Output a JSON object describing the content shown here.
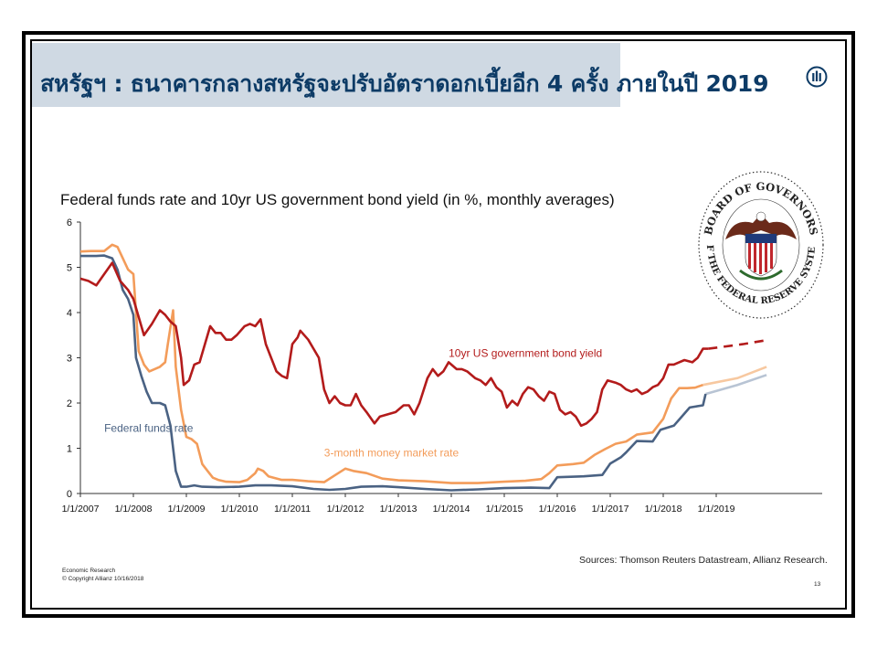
{
  "slide": {
    "title": "สหรัฐฯ : ธนาคารกลางสหรัฐจะปรับอัตราดอกเบี้ยอีก 4 ครั้ง ภายในปี  2019",
    "logo_icon": "allianz-logo-icon",
    "footer_line1": "Economic Research",
    "footer_line2": "© Copyright Allianz  10/16/2018",
    "sources": "Sources: Thomson Reuters Datastream, Allianz Research.",
    "page_number": "13",
    "seal_text_top": "BOARD OF GOVERNORS",
    "seal_text_bottom": "OF THE FEDERAL RESERVE SYSTEM",
    "colors": {
      "title": "#0d3b66",
      "title_band": "#cfd9e3"
    }
  },
  "chart_data": {
    "type": "line",
    "title": "Federal funds rate and 10yr US government bond yield (in %, monthly averages)",
    "xlabel": "",
    "ylabel": "",
    "ylim": [
      0,
      6
    ],
    "yticks": [
      "0",
      "1",
      "2",
      "3",
      "4",
      "5",
      "6"
    ],
    "xlim": [
      2007.0,
      2021.0
    ],
    "xticks": [
      {
        "label": "1/1/2007",
        "value": 2007
      },
      {
        "label": "1/1/2008",
        "value": 2008
      },
      {
        "label": "1/1/2009",
        "value": 2009
      },
      {
        "label": "1/1/2010",
        "value": 2010
      },
      {
        "label": "1/1/2011",
        "value": 2011
      },
      {
        "label": "1/1/2012",
        "value": 2012
      },
      {
        "label": "1/1/2013",
        "value": 2013
      },
      {
        "label": "1/1/2014",
        "value": 2014
      },
      {
        "label": "1/1/2015",
        "value": 2015
      },
      {
        "label": "1/1/2016",
        "value": 2016
      },
      {
        "label": "1/1/2017",
        "value": 2017
      },
      {
        "label": "1/1/2018",
        "value": 2018
      },
      {
        "label": "1/1/2019",
        "value": 2019
      }
    ],
    "grid": false,
    "legend": "none",
    "series": [
      {
        "name": "10yr US government bond yield",
        "color": "#b31b1b",
        "forecast_color": "#b31b1b",
        "points": [
          [
            2007.0,
            4.75
          ],
          [
            2007.15,
            4.7
          ],
          [
            2007.3,
            4.6
          ],
          [
            2007.45,
            4.85
          ],
          [
            2007.6,
            5.1
          ],
          [
            2007.75,
            4.7
          ],
          [
            2007.9,
            4.5
          ],
          [
            2008.0,
            4.3
          ],
          [
            2008.1,
            3.9
          ],
          [
            2008.2,
            3.5
          ],
          [
            2008.35,
            3.75
          ],
          [
            2008.5,
            4.05
          ],
          [
            2008.6,
            3.95
          ],
          [
            2008.7,
            3.8
          ],
          [
            2008.8,
            3.7
          ],
          [
            2008.9,
            3.0
          ],
          [
            2008.95,
            2.4
          ],
          [
            2009.05,
            2.5
          ],
          [
            2009.15,
            2.85
          ],
          [
            2009.25,
            2.9
          ],
          [
            2009.35,
            3.3
          ],
          [
            2009.45,
            3.7
          ],
          [
            2009.55,
            3.55
          ],
          [
            2009.65,
            3.55
          ],
          [
            2009.75,
            3.4
          ],
          [
            2009.85,
            3.4
          ],
          [
            2009.95,
            3.5
          ],
          [
            2010.1,
            3.7
          ],
          [
            2010.2,
            3.75
          ],
          [
            2010.3,
            3.7
          ],
          [
            2010.4,
            3.85
          ],
          [
            2010.5,
            3.3
          ],
          [
            2010.6,
            3.0
          ],
          [
            2010.7,
            2.7
          ],
          [
            2010.8,
            2.6
          ],
          [
            2010.9,
            2.55
          ],
          [
            2011.0,
            3.3
          ],
          [
            2011.1,
            3.45
          ],
          [
            2011.15,
            3.6
          ],
          [
            2011.3,
            3.4
          ],
          [
            2011.4,
            3.2
          ],
          [
            2011.5,
            3.0
          ],
          [
            2011.6,
            2.3
          ],
          [
            2011.7,
            2.0
          ],
          [
            2011.8,
            2.15
          ],
          [
            2011.9,
            2.0
          ],
          [
            2012.0,
            1.95
          ],
          [
            2012.1,
            1.95
          ],
          [
            2012.2,
            2.2
          ],
          [
            2012.3,
            1.95
          ],
          [
            2012.4,
            1.8
          ],
          [
            2012.55,
            1.55
          ],
          [
            2012.65,
            1.7
          ],
          [
            2012.8,
            1.75
          ],
          [
            2012.95,
            1.8
          ],
          [
            2013.1,
            1.95
          ],
          [
            2013.2,
            1.95
          ],
          [
            2013.3,
            1.75
          ],
          [
            2013.4,
            2.0
          ],
          [
            2013.55,
            2.55
          ],
          [
            2013.65,
            2.75
          ],
          [
            2013.75,
            2.6
          ],
          [
            2013.85,
            2.7
          ],
          [
            2013.95,
            2.9
          ],
          [
            2014.1,
            2.75
          ],
          [
            2014.2,
            2.75
          ],
          [
            2014.3,
            2.7
          ],
          [
            2014.45,
            2.55
          ],
          [
            2014.55,
            2.5
          ],
          [
            2014.65,
            2.4
          ],
          [
            2014.75,
            2.55
          ],
          [
            2014.85,
            2.35
          ],
          [
            2014.95,
            2.25
          ],
          [
            2015.05,
            1.9
          ],
          [
            2015.15,
            2.05
          ],
          [
            2015.25,
            1.95
          ],
          [
            2015.35,
            2.2
          ],
          [
            2015.45,
            2.35
          ],
          [
            2015.55,
            2.3
          ],
          [
            2015.65,
            2.15
          ],
          [
            2015.75,
            2.05
          ],
          [
            2015.85,
            2.25
          ],
          [
            2015.95,
            2.2
          ],
          [
            2016.05,
            1.85
          ],
          [
            2016.15,
            1.75
          ],
          [
            2016.25,
            1.8
          ],
          [
            2016.35,
            1.7
          ],
          [
            2016.45,
            1.5
          ],
          [
            2016.55,
            1.55
          ],
          [
            2016.65,
            1.65
          ],
          [
            2016.75,
            1.8
          ],
          [
            2016.85,
            2.3
          ],
          [
            2016.95,
            2.5
          ],
          [
            2017.1,
            2.45
          ],
          [
            2017.2,
            2.4
          ],
          [
            2017.3,
            2.3
          ],
          [
            2017.4,
            2.25
          ],
          [
            2017.5,
            2.3
          ],
          [
            2017.6,
            2.2
          ],
          [
            2017.7,
            2.25
          ],
          [
            2017.8,
            2.35
          ],
          [
            2017.9,
            2.4
          ],
          [
            2018.0,
            2.55
          ],
          [
            2018.1,
            2.85
          ],
          [
            2018.2,
            2.85
          ],
          [
            2018.3,
            2.9
          ],
          [
            2018.4,
            2.95
          ],
          [
            2018.55,
            2.9
          ],
          [
            2018.65,
            3.0
          ],
          [
            2018.75,
            3.2
          ],
          [
            2018.85,
            3.2
          ]
        ],
        "forecast": [
          [
            2018.85,
            3.2
          ],
          [
            2019.5,
            3.3
          ],
          [
            2019.9,
            3.38
          ]
        ]
      },
      {
        "name": "3-month money market rate",
        "color": "#f39c5a",
        "forecast_color": "#f7c8a0",
        "points": [
          [
            2007.0,
            5.35
          ],
          [
            2007.2,
            5.36
          ],
          [
            2007.45,
            5.36
          ],
          [
            2007.6,
            5.5
          ],
          [
            2007.7,
            5.45
          ],
          [
            2007.8,
            5.2
          ],
          [
            2007.9,
            4.95
          ],
          [
            2008.0,
            4.85
          ],
          [
            2008.1,
            3.15
          ],
          [
            2008.2,
            2.85
          ],
          [
            2008.3,
            2.7
          ],
          [
            2008.4,
            2.75
          ],
          [
            2008.5,
            2.8
          ],
          [
            2008.6,
            2.9
          ],
          [
            2008.65,
            3.3
          ],
          [
            2008.75,
            4.05
          ],
          [
            2008.8,
            2.8
          ],
          [
            2008.9,
            1.85
          ],
          [
            2009.0,
            1.25
          ],
          [
            2009.1,
            1.2
          ],
          [
            2009.2,
            1.1
          ],
          [
            2009.3,
            0.65
          ],
          [
            2009.4,
            0.5
          ],
          [
            2009.5,
            0.35
          ],
          [
            2009.6,
            0.3
          ],
          [
            2009.75,
            0.26
          ],
          [
            2010.0,
            0.25
          ],
          [
            2010.15,
            0.3
          ],
          [
            2010.3,
            0.45
          ],
          [
            2010.35,
            0.55
          ],
          [
            2010.45,
            0.5
          ],
          [
            2010.55,
            0.38
          ],
          [
            2010.8,
            0.3
          ],
          [
            2011.0,
            0.3
          ],
          [
            2011.3,
            0.27
          ],
          [
            2011.6,
            0.25
          ],
          [
            2011.8,
            0.4
          ],
          [
            2012.0,
            0.55
          ],
          [
            2012.15,
            0.5
          ],
          [
            2012.4,
            0.45
          ],
          [
            2012.7,
            0.33
          ],
          [
            2013.0,
            0.29
          ],
          [
            2013.5,
            0.27
          ],
          [
            2014.0,
            0.23
          ],
          [
            2014.5,
            0.23
          ],
          [
            2015.0,
            0.26
          ],
          [
            2015.4,
            0.28
          ],
          [
            2015.7,
            0.32
          ],
          [
            2015.85,
            0.45
          ],
          [
            2016.0,
            0.62
          ],
          [
            2016.3,
            0.65
          ],
          [
            2016.5,
            0.68
          ],
          [
            2016.7,
            0.85
          ],
          [
            2016.9,
            0.98
          ],
          [
            2017.1,
            1.1
          ],
          [
            2017.3,
            1.15
          ],
          [
            2017.5,
            1.3
          ],
          [
            2017.8,
            1.35
          ],
          [
            2018.0,
            1.65
          ],
          [
            2018.15,
            2.1
          ],
          [
            2018.3,
            2.33
          ],
          [
            2018.45,
            2.33
          ],
          [
            2018.6,
            2.34
          ],
          [
            2018.75,
            2.4
          ]
        ],
        "forecast": [
          [
            2018.75,
            2.4
          ],
          [
            2019.4,
            2.55
          ],
          [
            2019.95,
            2.8
          ]
        ]
      },
      {
        "name": "Federal funds rate",
        "color": "#4a6283",
        "forecast_color": "#b8c4d4",
        "points": [
          [
            2007.0,
            5.25
          ],
          [
            2007.3,
            5.25
          ],
          [
            2007.45,
            5.26
          ],
          [
            2007.6,
            5.2
          ],
          [
            2007.7,
            4.95
          ],
          [
            2007.8,
            4.5
          ],
          [
            2007.9,
            4.3
          ],
          [
            2008.0,
            3.95
          ],
          [
            2008.05,
            3.0
          ],
          [
            2008.15,
            2.6
          ],
          [
            2008.25,
            2.25
          ],
          [
            2008.35,
            2.0
          ],
          [
            2008.5,
            2.0
          ],
          [
            2008.6,
            1.95
          ],
          [
            2008.7,
            1.5
          ],
          [
            2008.8,
            0.5
          ],
          [
            2008.9,
            0.15
          ],
          [
            2009.0,
            0.15
          ],
          [
            2009.15,
            0.18
          ],
          [
            2009.3,
            0.15
          ],
          [
            2009.6,
            0.14
          ],
          [
            2010.0,
            0.15
          ],
          [
            2010.3,
            0.18
          ],
          [
            2010.6,
            0.18
          ],
          [
            2011.0,
            0.16
          ],
          [
            2011.4,
            0.1
          ],
          [
            2011.7,
            0.08
          ],
          [
            2012.0,
            0.1
          ],
          [
            2012.3,
            0.15
          ],
          [
            2012.7,
            0.16
          ],
          [
            2013.0,
            0.14
          ],
          [
            2013.5,
            0.1
          ],
          [
            2014.0,
            0.07
          ],
          [
            2014.5,
            0.09
          ],
          [
            2015.0,
            0.12
          ],
          [
            2015.5,
            0.13
          ],
          [
            2015.85,
            0.12
          ],
          [
            2016.0,
            0.36
          ],
          [
            2016.5,
            0.38
          ],
          [
            2016.85,
            0.41
          ],
          [
            2017.0,
            0.66
          ],
          [
            2017.2,
            0.8
          ],
          [
            2017.3,
            0.91
          ],
          [
            2017.5,
            1.16
          ],
          [
            2017.8,
            1.15
          ],
          [
            2017.95,
            1.41
          ],
          [
            2018.2,
            1.5
          ],
          [
            2018.35,
            1.7
          ],
          [
            2018.5,
            1.9
          ],
          [
            2018.75,
            1.95
          ],
          [
            2018.8,
            2.2
          ]
        ],
        "forecast": [
          [
            2018.8,
            2.2
          ],
          [
            2019.4,
            2.4
          ],
          [
            2019.95,
            2.62
          ]
        ]
      }
    ],
    "annotations": [
      {
        "text": "10yr US government bond yield",
        "series": 0
      },
      {
        "text": "3-month money market rate",
        "series": 1
      },
      {
        "text": "Federal funds rate",
        "series": 2
      }
    ]
  }
}
